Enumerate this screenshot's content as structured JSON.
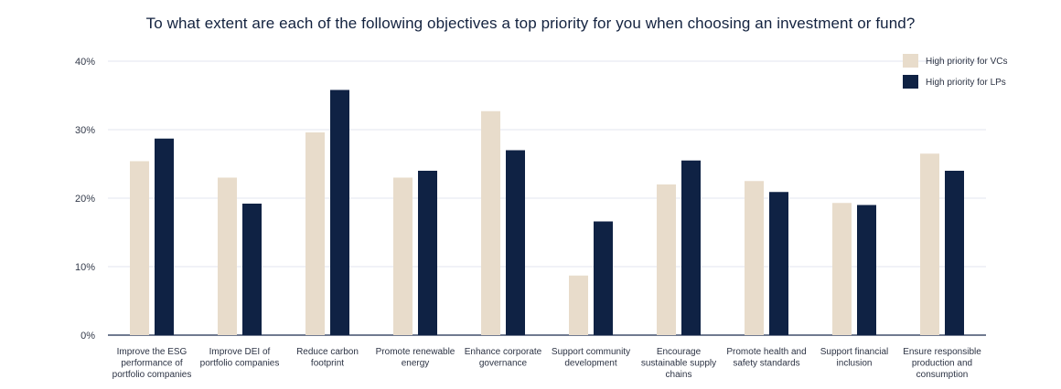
{
  "chart_data": {
    "type": "bar",
    "title": "To what extent are each of the following objectives a top priority for you when choosing an investment or fund?",
    "categories": [
      [
        "Improve the ESG",
        "performance of",
        "portfolio companies"
      ],
      [
        "Improve DEI of",
        "portfolio companies"
      ],
      [
        "Reduce carbon",
        "footprint"
      ],
      [
        "Promote renewable",
        "energy"
      ],
      [
        "Enhance corporate",
        "governance"
      ],
      [
        "Support community",
        "development"
      ],
      [
        "Encourage",
        "sustainable supply",
        "chains"
      ],
      [
        "Promote health and",
        "safety standards"
      ],
      [
        "Support financial",
        "inclusion"
      ],
      [
        "Ensure responsible",
        "production and",
        "consumption"
      ]
    ],
    "series": [
      {
        "name": "High priority for VCs",
        "color": "#e8dccb",
        "values": [
          25.4,
          23.0,
          29.6,
          23.0,
          32.7,
          8.7,
          22.0,
          22.5,
          19.3,
          26.5
        ]
      },
      {
        "name": "High priority for LPs",
        "color": "#0f2244",
        "values": [
          28.7,
          19.2,
          35.8,
          24.0,
          27.0,
          16.6,
          25.5,
          20.9,
          19.0,
          24.0
        ]
      }
    ],
    "yticks": [
      "0%",
      "10%",
      "20%",
      "30%",
      "40%"
    ],
    "ylim": [
      0,
      40
    ],
    "grid": true,
    "legend_position": "top-right"
  }
}
